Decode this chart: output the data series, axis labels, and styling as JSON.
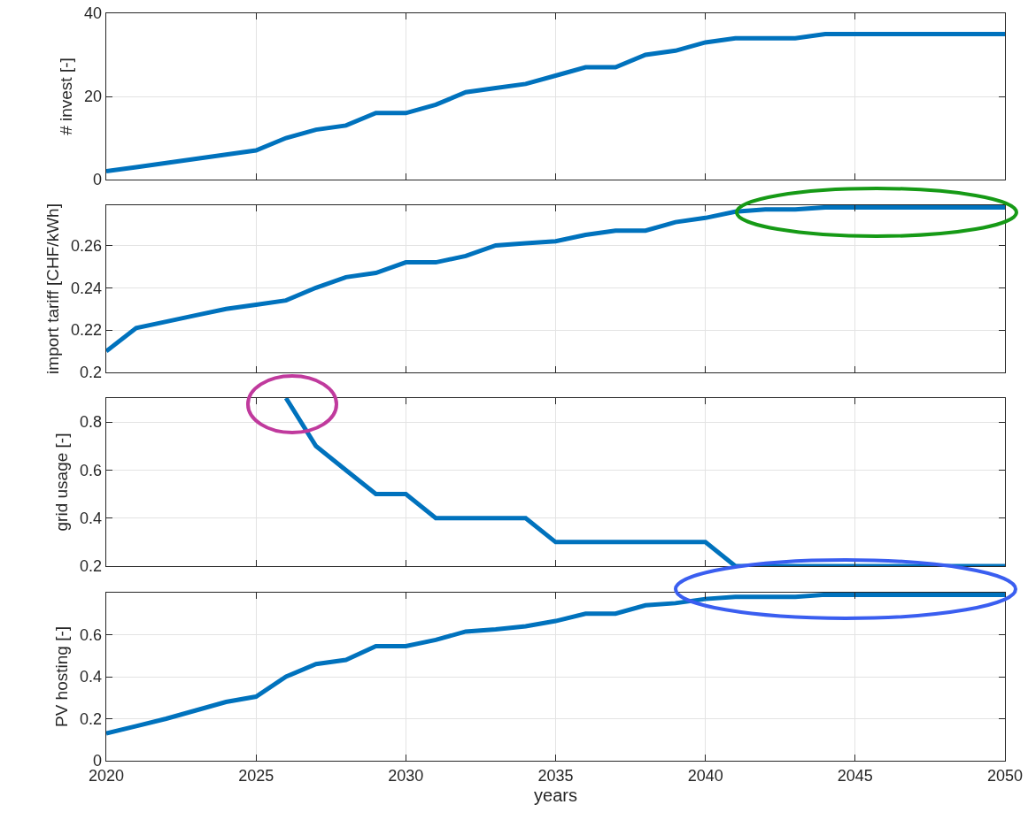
{
  "chart_data": [
    {
      "type": "line",
      "ylabel": "# invest [-]",
      "x": [
        2020,
        2021,
        2022,
        2023,
        2024,
        2025,
        2026,
        2027,
        2028,
        2029,
        2030,
        2031,
        2032,
        2033,
        2034,
        2035,
        2036,
        2037,
        2038,
        2039,
        2040,
        2041,
        2042,
        2043,
        2044,
        2045,
        2046,
        2047,
        2048,
        2049,
        2050
      ],
      "series": [
        {
          "color": "#0072bd",
          "values": [
            2,
            3,
            4,
            5,
            6,
            7,
            10,
            12,
            13,
            16,
            16,
            18,
            21,
            22,
            23,
            25,
            27,
            27,
            30,
            31,
            33,
            34,
            34,
            34,
            35,
            35,
            35,
            35,
            35,
            35,
            35
          ]
        }
      ],
      "xlim": [
        2020,
        2050
      ],
      "xticks": [
        2020,
        2025,
        2030,
        2035,
        2040,
        2045,
        2050
      ],
      "ylim": [
        0,
        40
      ],
      "yticks": [
        0,
        20,
        40
      ],
      "grid": true,
      "tick_labels": "y"
    },
    {
      "type": "line",
      "ylabel": "import tariff [CHF/kWh]",
      "x": [
        2020,
        2021,
        2022,
        2023,
        2024,
        2025,
        2026,
        2027,
        2028,
        2029,
        2030,
        2031,
        2032,
        2033,
        2034,
        2035,
        2036,
        2037,
        2038,
        2039,
        2040,
        2041,
        2042,
        2043,
        2044,
        2045,
        2046,
        2047,
        2048,
        2049,
        2050
      ],
      "series": [
        {
          "color": "#0072bd",
          "values": [
            0.21,
            0.221,
            0.224,
            0.227,
            0.23,
            0.232,
            0.234,
            0.24,
            0.245,
            0.247,
            0.252,
            0.252,
            0.255,
            0.26,
            0.261,
            0.262,
            0.265,
            0.267,
            0.267,
            0.271,
            0.273,
            0.276,
            0.277,
            0.277,
            0.278,
            0.278,
            0.278,
            0.278,
            0.278,
            0.278,
            0.278
          ]
        }
      ],
      "xlim": [
        2020,
        2050
      ],
      "xticks": [
        2020,
        2025,
        2030,
        2035,
        2040,
        2045,
        2050
      ],
      "ylim": [
        0.2,
        0.279
      ],
      "yticks": [
        0.2,
        0.22,
        0.24,
        0.26
      ],
      "grid": true,
      "tick_labels": "y"
    },
    {
      "type": "line",
      "ylabel": "grid usage [-]",
      "series": [
        {
          "color": "#0072bd",
          "x": [
            2026,
            2027,
            2028,
            2029,
            2030,
            2031,
            2032,
            2033,
            2034,
            2035,
            2036,
            2037,
            2038,
            2039,
            2040,
            2041,
            2042,
            2043,
            2044,
            2045,
            2046,
            2047,
            2048,
            2049,
            2050
          ],
          "values": [
            0.9,
            0.7,
            0.6,
            0.5,
            0.5,
            0.4,
            0.4,
            0.4,
            0.4,
            0.3,
            0.3,
            0.3,
            0.3,
            0.3,
            0.3,
            0.2,
            0.2,
            0.2,
            0.2,
            0.2,
            0.2,
            0.2,
            0.2,
            0.2,
            0.2
          ]
        }
      ],
      "xlim": [
        2020,
        2050
      ],
      "xticks": [
        2020,
        2025,
        2030,
        2035,
        2040,
        2045,
        2050
      ],
      "ylim": [
        0.2,
        0.9
      ],
      "yticks": [
        0.2,
        0.4,
        0.6,
        0.8
      ],
      "grid": true,
      "tick_labels": "y"
    },
    {
      "type": "line",
      "ylabel": "PV hosting [-]",
      "xlabel": "years",
      "x": [
        2020,
        2021,
        2022,
        2023,
        2024,
        2025,
        2026,
        2027,
        2028,
        2029,
        2030,
        2031,
        2032,
        2033,
        2034,
        2035,
        2036,
        2037,
        2038,
        2039,
        2040,
        2041,
        2042,
        2043,
        2044,
        2045,
        2046,
        2047,
        2048,
        2049,
        2050
      ],
      "series": [
        {
          "color": "#0072bd",
          "values": [
            0.13,
            0.165,
            0.2,
            0.24,
            0.28,
            0.305,
            0.4,
            0.46,
            0.48,
            0.545,
            0.545,
            0.575,
            0.615,
            0.625,
            0.64,
            0.665,
            0.7,
            0.7,
            0.74,
            0.75,
            0.77,
            0.78,
            0.78,
            0.78,
            0.79,
            0.79,
            0.79,
            0.79,
            0.79,
            0.79,
            0.79
          ]
        }
      ],
      "xlim": [
        2020,
        2050
      ],
      "xticks": [
        2020,
        2025,
        2030,
        2035,
        2040,
        2045,
        2050
      ],
      "ylim": [
        0,
        0.8
      ],
      "yticks": [
        0,
        0.2,
        0.4,
        0.6
      ],
      "grid": true
    }
  ]
}
